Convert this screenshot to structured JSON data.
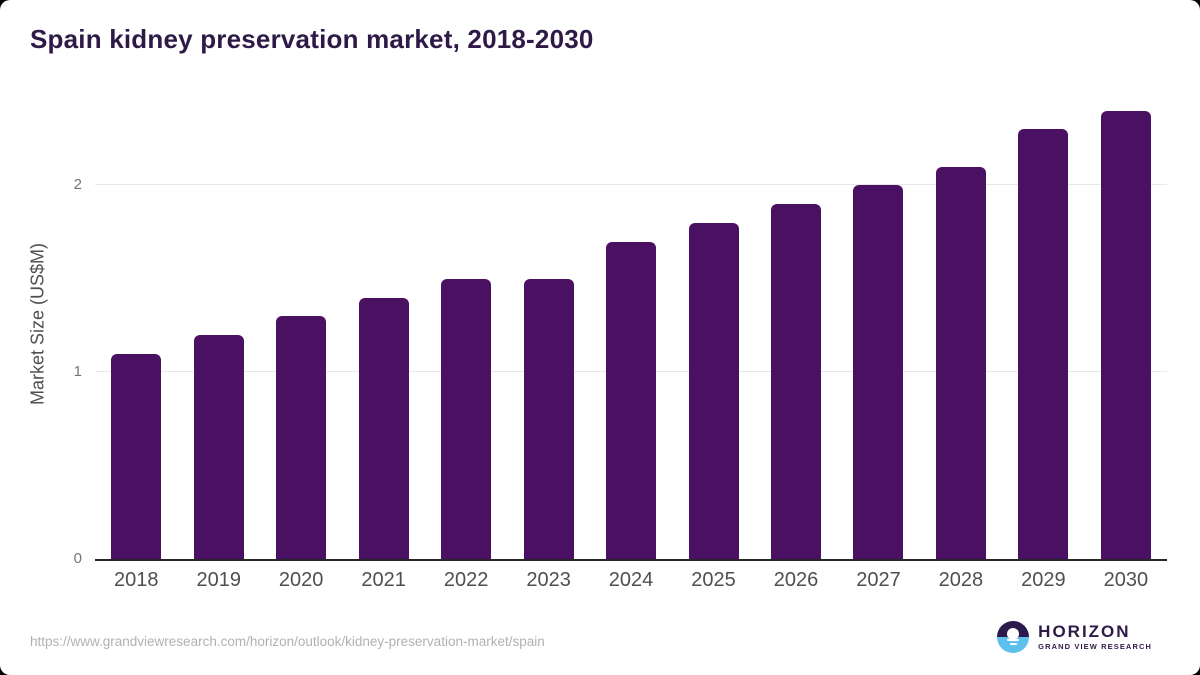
{
  "page": {
    "title": "Spain kidney preservation market, 2018-2030"
  },
  "chart_data": {
    "type": "bar",
    "title": "Spain kidney preservation market, 2018-2030",
    "categories": [
      "2018",
      "2019",
      "2020",
      "2021",
      "2022",
      "2023",
      "2024",
      "2025",
      "2026",
      "2027",
      "2028",
      "2029",
      "2030"
    ],
    "values": [
      1.1,
      1.2,
      1.3,
      1.4,
      1.5,
      1.5,
      1.7,
      1.8,
      1.9,
      2.0,
      2.1,
      2.3,
      2.4
    ],
    "xlabel": "",
    "ylabel": "Market Size (US$M)",
    "yticks": [
      0,
      1,
      2
    ],
    "ylim": [
      0,
      2.5
    ],
    "grid": "horizontal-only",
    "legend_position": "none",
    "bar_color": "#4a1162"
  },
  "footer": {
    "source_url": "https://www.grandviewresearch.com/horizon/outlook/kidney-preservation-market/spain",
    "logo": {
      "brand": "HORIZON",
      "tagline": "GRAND VIEW RESEARCH",
      "icon": "horizon-sunset-icon"
    }
  },
  "colors": {
    "bar": "#4a1162",
    "title_text": "#2e1a47",
    "axis_text": "#4f4f4f",
    "tick_text": "#757575",
    "gridline": "#e7e7e7",
    "axis_line": "#262626",
    "url_text": "#b1b1b1",
    "logo_dark": "#2c1a4d",
    "logo_blue": "#5ec1ed",
    "card_bg": "#ffffff"
  }
}
